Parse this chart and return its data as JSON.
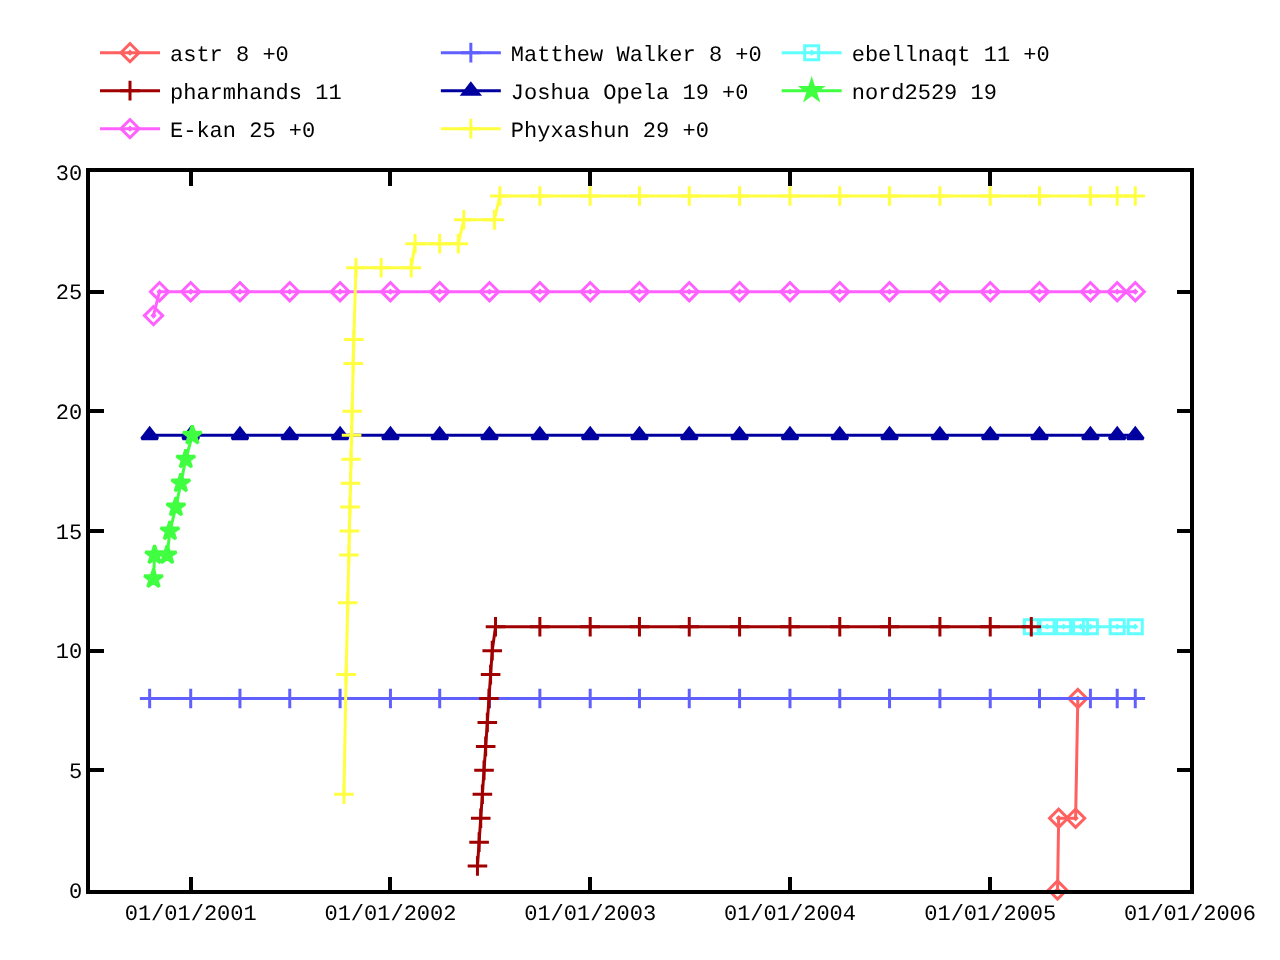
{
  "chart_data": {
    "type": "line",
    "xlim": [
      "2000-07-01",
      "2006-01-01"
    ],
    "ylim": [
      0,
      30
    ],
    "xticks": [
      {
        "value": "2001-01-01",
        "label": "01/01/2001"
      },
      {
        "value": "2002-01-01",
        "label": "01/01/2002"
      },
      {
        "value": "2003-01-01",
        "label": "01/01/2003"
      },
      {
        "value": "2004-01-01",
        "label": "01/01/2004"
      },
      {
        "value": "2005-01-01",
        "label": "01/01/2005"
      },
      {
        "value": "2006-01-01",
        "label": "01/01/2006"
      }
    ],
    "yticks": [
      0,
      5,
      10,
      15,
      20,
      25,
      30
    ],
    "legend": "top",
    "line_style": "solid",
    "series": [
      {
        "name": "astr 8 +0",
        "color": "#ff6060",
        "marker": "diamond",
        "x": [
          "2005-05-04",
          "2005-05-06",
          "2005-06-06",
          "2005-06-10"
        ],
        "values": [
          0,
          3,
          3,
          8
        ]
      },
      {
        "name": "Matthew Walker 8 +0",
        "color": "#6060ff",
        "marker": "cross",
        "x": [
          "2000-10-18",
          "2001-01-01",
          "2001-04-01",
          "2001-07-01",
          "2001-10-01",
          "2002-01-01",
          "2002-04-01",
          "2002-07-01",
          "2002-10-01",
          "2003-01-01",
          "2003-04-01",
          "2003-07-01",
          "2003-10-01",
          "2004-01-01",
          "2004-04-01",
          "2004-07-01",
          "2004-10-01",
          "2005-01-01",
          "2005-04-01",
          "2005-07-03",
          "2005-08-21",
          "2005-09-23"
        ],
        "values": [
          8,
          8,
          8,
          8,
          8,
          8,
          8,
          8,
          8,
          8,
          8,
          8,
          8,
          8,
          8,
          8,
          8,
          8,
          8,
          8,
          8,
          8
        ]
      },
      {
        "name": "ebellnaqt 11 +0",
        "color": "#60ffff",
        "marker": "square",
        "x": [
          "2005-03-17",
          "2005-04-15",
          "2005-05-15",
          "2005-06-15",
          "2005-07-03",
          "2005-08-21",
          "2005-09-23"
        ],
        "values": [
          11,
          11,
          11,
          11,
          11,
          11,
          11
        ]
      },
      {
        "name": "pharmhands 11",
        "color": "#a00000",
        "marker": "cross",
        "x": [
          "2002-06-09",
          "2002-06-12",
          "2002-06-15",
          "2002-06-18",
          "2002-06-21",
          "2002-06-24",
          "2002-06-27",
          "2002-06-30",
          "2002-07-03",
          "2002-07-06",
          "2002-07-12",
          "2002-10-01",
          "2003-01-01",
          "2003-04-01",
          "2003-07-01",
          "2003-10-01",
          "2004-01-01",
          "2004-04-01",
          "2004-07-01",
          "2004-10-01",
          "2005-01-01",
          "2005-03-17"
        ],
        "values": [
          1,
          2,
          3,
          4,
          5,
          6,
          7,
          8,
          9,
          10,
          11,
          11,
          11,
          11,
          11,
          11,
          11,
          11,
          11,
          11,
          11,
          11
        ]
      },
      {
        "name": "Joshua Opela 19 +0",
        "color": "#0000a0",
        "marker": "triangle",
        "x": [
          "2000-10-18",
          "2001-01-01",
          "2001-04-01",
          "2001-07-01",
          "2001-10-01",
          "2002-01-01",
          "2002-04-01",
          "2002-07-01",
          "2002-10-01",
          "2003-01-01",
          "2003-04-01",
          "2003-07-01",
          "2003-10-01",
          "2004-01-01",
          "2004-04-01",
          "2004-07-01",
          "2004-10-01",
          "2005-01-01",
          "2005-04-01",
          "2005-07-03",
          "2005-08-21",
          "2005-09-23"
        ],
        "values": [
          19,
          19,
          19,
          19,
          19,
          19,
          19,
          19,
          19,
          19,
          19,
          19,
          19,
          19,
          19,
          19,
          19,
          19,
          19,
          19,
          19,
          19
        ]
      },
      {
        "name": "nord2529 19",
        "color": "#40ff40",
        "marker": "star",
        "x": [
          "2000-10-25",
          "2000-10-27",
          "2000-11-19",
          "2000-11-24",
          "2000-12-05",
          "2000-12-14",
          "2000-12-23",
          "2001-01-04"
        ],
        "values": [
          13,
          14,
          14,
          15,
          16,
          17,
          18,
          19
        ]
      },
      {
        "name": "E-kan 25 +0",
        "color": "#ff60ff",
        "marker": "diamond",
        "x": [
          "2000-10-25",
          "2000-11-05",
          "2001-01-01",
          "2001-04-01",
          "2001-07-01",
          "2001-10-01",
          "2002-01-01",
          "2002-04-01",
          "2002-07-01",
          "2002-10-01",
          "2003-01-01",
          "2003-04-01",
          "2003-07-01",
          "2003-10-01",
          "2004-01-01",
          "2004-04-01",
          "2004-07-01",
          "2004-10-01",
          "2005-01-01",
          "2005-04-01",
          "2005-07-03",
          "2005-08-21",
          "2005-09-23"
        ],
        "values": [
          24,
          25,
          25,
          25,
          25,
          25,
          25,
          25,
          25,
          25,
          25,
          25,
          25,
          25,
          25,
          25,
          25,
          25,
          25,
          25,
          25,
          25,
          25
        ]
      },
      {
        "name": "Phyxashun 29 +0",
        "color": "#ffff40",
        "marker": "cross",
        "x": [
          "2001-10-08",
          "2001-10-12",
          "2001-10-15",
          "2001-10-17",
          "2001-10-18",
          "2001-10-19",
          "2001-10-20",
          "2001-10-21",
          "2001-10-22",
          "2001-10-23",
          "2001-10-25",
          "2001-10-26",
          "2001-10-30",
          "2001-12-15",
          "2002-02-08",
          "2002-02-15",
          "2002-04-01",
          "2002-05-05",
          "2002-05-15",
          "2002-07-10",
          "2002-07-20",
          "2002-10-01",
          "2003-01-01",
          "2003-04-01",
          "2003-07-01",
          "2003-10-01",
          "2004-01-01",
          "2004-04-01",
          "2004-07-01",
          "2004-10-01",
          "2005-01-01",
          "2005-04-01",
          "2005-07-03",
          "2005-08-21",
          "2005-09-23"
        ],
        "values": [
          4,
          9,
          12,
          14,
          15,
          16,
          17,
          18,
          19,
          20,
          22,
          23,
          26,
          26,
          26,
          27,
          27,
          27,
          28,
          28,
          29,
          29,
          29,
          29,
          29,
          29,
          29,
          29,
          29,
          29,
          29,
          29,
          29,
          29,
          29
        ]
      }
    ]
  }
}
